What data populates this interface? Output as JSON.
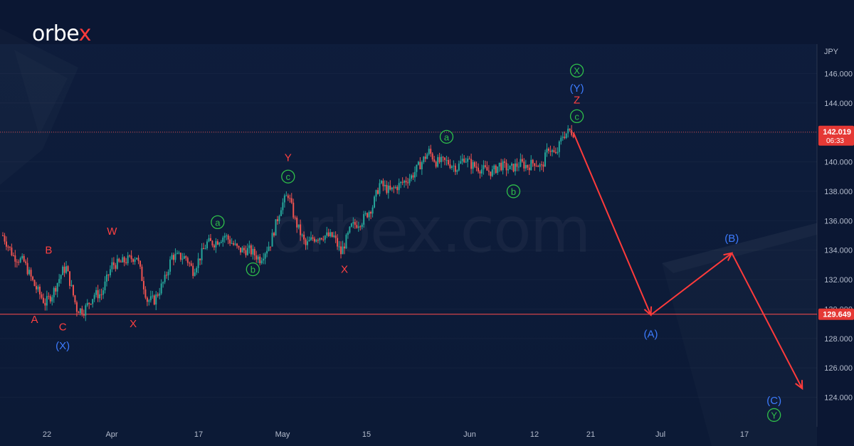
{
  "branding": {
    "logo_text_main": "orbe",
    "logo_text_x": "x",
    "watermark": "orbex.com"
  },
  "colors": {
    "background": "#0d1b38",
    "up_candle": "#26a69a",
    "down_candle": "#ef5350",
    "wave_red": "#ff4040",
    "wave_blue": "#3d7cff",
    "wave_green": "#2fbf4a",
    "projection": "#ff3b3b",
    "level_line": "#ff4d4d"
  },
  "chart_data": {
    "type": "line",
    "symbol_unit": "JPY",
    "x_ticks": [
      "22",
      "Apr",
      "17",
      "May",
      "15",
      "Jun",
      "12",
      "21",
      "Jul",
      "17"
    ],
    "y_ticks": [
      "124.000",
      "126.000",
      "128.000",
      "130.000",
      "132.000",
      "134.000",
      "136.000",
      "138.000",
      "140.000",
      "142.000",
      "144.000",
      "146.000"
    ],
    "ylim": [
      122,
      148
    ],
    "current_price": {
      "value": "142.019",
      "countdown": "06:33"
    },
    "support_level": {
      "value": "129.649"
    },
    "price_path": [
      {
        "t": 0,
        "p": 135.0
      },
      {
        "t": 3,
        "p": 133.6
      },
      {
        "t": 6,
        "p": 133.2
      },
      {
        "t": 9,
        "p": 131.6
      },
      {
        "t": 12,
        "p": 130.4
      },
      {
        "t": 14,
        "p": 131.0
      },
      {
        "t": 17,
        "p": 132.6
      },
      {
        "t": 18,
        "p": 132.8
      },
      {
        "t": 21,
        "p": 130.0
      },
      {
        "t": 23,
        "p": 129.9
      },
      {
        "t": 26,
        "p": 131.0
      },
      {
        "t": 28,
        "p": 131.0
      },
      {
        "t": 31,
        "p": 133.0
      },
      {
        "t": 33,
        "p": 133.1
      },
      {
        "t": 36,
        "p": 133.4
      },
      {
        "t": 38,
        "p": 133.6
      },
      {
        "t": 41,
        "p": 130.6
      },
      {
        "t": 43,
        "p": 130.6
      },
      {
        "t": 46,
        "p": 132.0
      },
      {
        "t": 48,
        "p": 133.6
      },
      {
        "t": 52,
        "p": 133.5
      },
      {
        "t": 54,
        "p": 132.6
      },
      {
        "t": 58,
        "p": 134.5
      },
      {
        "t": 60,
        "p": 134.5
      },
      {
        "t": 63,
        "p": 135.0
      },
      {
        "t": 67,
        "p": 134.0
      },
      {
        "t": 70,
        "p": 134.0
      },
      {
        "t": 73,
        "p": 133.4
      },
      {
        "t": 76,
        "p": 134.5
      },
      {
        "t": 79,
        "p": 137.0
      },
      {
        "t": 81,
        "p": 137.8
      },
      {
        "t": 83,
        "p": 136.0
      },
      {
        "t": 86,
        "p": 134.3
      },
      {
        "t": 88,
        "p": 134.8
      },
      {
        "t": 91,
        "p": 135.0
      },
      {
        "t": 94,
        "p": 134.9
      },
      {
        "t": 96,
        "p": 133.8
      },
      {
        "t": 99,
        "p": 135.6
      },
      {
        "t": 102,
        "p": 136.0
      },
      {
        "t": 105,
        "p": 137.0
      },
      {
        "t": 107,
        "p": 138.5
      },
      {
        "t": 110,
        "p": 138.0
      },
      {
        "t": 113,
        "p": 138.5
      },
      {
        "t": 116,
        "p": 139.0
      },
      {
        "t": 119,
        "p": 140.0
      },
      {
        "t": 121,
        "p": 140.7
      },
      {
        "t": 123,
        "p": 140.0
      },
      {
        "t": 126,
        "p": 140.0
      },
      {
        "t": 129,
        "p": 139.6
      },
      {
        "t": 131,
        "p": 140.3
      },
      {
        "t": 133,
        "p": 139.8
      },
      {
        "t": 136,
        "p": 139.5
      },
      {
        "t": 139,
        "p": 139.3
      },
      {
        "t": 141,
        "p": 139.8
      },
      {
        "t": 144,
        "p": 139.5
      },
      {
        "t": 147,
        "p": 139.9
      },
      {
        "t": 149,
        "p": 139.7
      },
      {
        "t": 151,
        "p": 140.0
      },
      {
        "t": 153,
        "p": 139.6
      },
      {
        "t": 155,
        "p": 141.0
      },
      {
        "t": 157,
        "p": 140.4
      },
      {
        "t": 159,
        "p": 141.8
      },
      {
        "t": 161,
        "p": 142.1
      },
      {
        "t": 162,
        "p": 142.0
      }
    ],
    "projection_path": [
      {
        "t": 162,
        "p": 142.0
      },
      {
        "t": 184,
        "p": 129.6
      },
      {
        "t": 207,
        "p": 133.8
      },
      {
        "t": 227,
        "p": 124.6
      }
    ],
    "wave_labels": [
      {
        "text": "A",
        "color": "red",
        "t": 9,
        "p": 129.3,
        "circled": false
      },
      {
        "text": "B",
        "color": "red",
        "t": 13,
        "p": 134.0,
        "circled": false
      },
      {
        "text": "C",
        "color": "red",
        "t": 17,
        "p": 128.8,
        "circled": false
      },
      {
        "text": "(X)",
        "color": "blue",
        "t": 17,
        "p": 127.5,
        "circled": false
      },
      {
        "text": "W",
        "color": "red",
        "t": 31,
        "p": 135.3,
        "circled": false
      },
      {
        "text": "X",
        "color": "red",
        "t": 37,
        "p": 129.0,
        "circled": false
      },
      {
        "text": "a",
        "color": "green",
        "t": 61,
        "p": 135.9,
        "circled": true
      },
      {
        "text": "b",
        "color": "green",
        "t": 71,
        "p": 132.7,
        "circled": true
      },
      {
        "text": "Y",
        "color": "red",
        "t": 81,
        "p": 140.3,
        "circled": false
      },
      {
        "text": "c",
        "color": "green",
        "t": 81,
        "p": 139.0,
        "circled": true
      },
      {
        "text": "X",
        "color": "red",
        "t": 97,
        "p": 132.7,
        "circled": false
      },
      {
        "text": "a",
        "color": "green",
        "t": 126,
        "p": 141.7,
        "circled": true
      },
      {
        "text": "b",
        "color": "green",
        "t": 145,
        "p": 138.0,
        "circled": true
      },
      {
        "text": "X",
        "color": "green",
        "t": 163,
        "p": 146.2,
        "circled": true
      },
      {
        "text": "(Y)",
        "color": "blue",
        "t": 163,
        "p": 145.0,
        "circled": false
      },
      {
        "text": "Z",
        "color": "red",
        "t": 163,
        "p": 144.2,
        "circled": false
      },
      {
        "text": "c",
        "color": "green",
        "t": 163,
        "p": 143.1,
        "circled": true
      },
      {
        "text": "(A)",
        "color": "blue",
        "t": 184,
        "p": 128.3,
        "circled": false
      },
      {
        "text": "(B)",
        "color": "blue",
        "t": 207,
        "p": 134.8,
        "circled": false
      },
      {
        "text": "(C)",
        "color": "blue",
        "t": 219,
        "p": 123.8,
        "circled": false
      },
      {
        "text": "Y",
        "color": "green",
        "t": 219,
        "p": 122.8,
        "circled": true
      }
    ]
  }
}
